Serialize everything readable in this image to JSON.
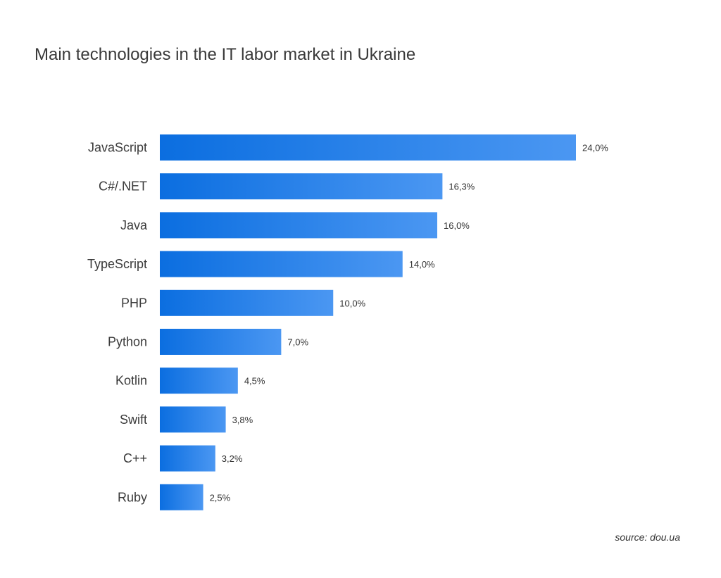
{
  "title": "Main technologies in the IT labor market in Ukraine",
  "source": "source: dou.ua",
  "colors": {
    "bar_start": "#0b6ee0",
    "bar_end": "#4b97f2",
    "text": "#3a3a3a"
  },
  "chart_data": {
    "type": "bar",
    "orientation": "horizontal",
    "title": "Main technologies in the IT labor market in Ukraine",
    "xlabel": "",
    "ylabel": "",
    "categories": [
      "JavaScript",
      "C#/.NET",
      "Java",
      "TypeScript",
      "PHP",
      "Python",
      "Kotlin",
      "Swift",
      "C++",
      "Ruby"
    ],
    "values": [
      24.0,
      16.3,
      16.0,
      14.0,
      10.0,
      7.0,
      4.5,
      3.8,
      3.2,
      2.5
    ],
    "value_labels": [
      "24,0%",
      "16,3%",
      "16,0%",
      "14,0%",
      "10,0%",
      "7,0%",
      "4,5%",
      "3,8%",
      "3,2%",
      "2,5%"
    ],
    "unit": "%",
    "xlim": [
      0,
      24
    ],
    "grid": false,
    "legend": "none"
  }
}
